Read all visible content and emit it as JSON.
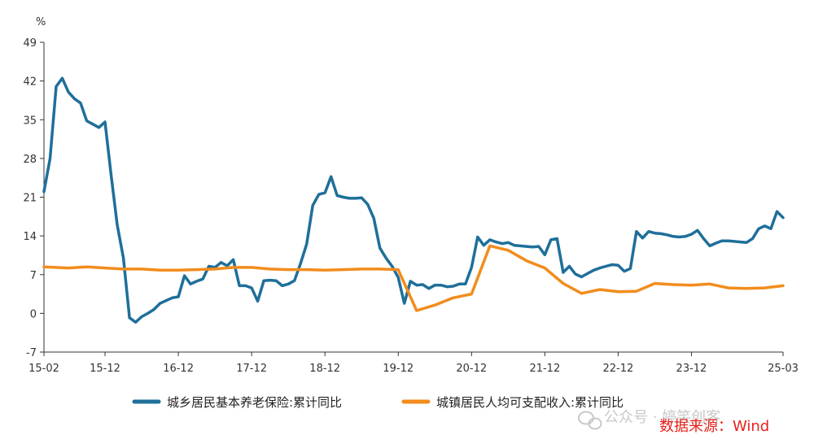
{
  "chart_data": {
    "type": "line",
    "ylabel": "%",
    "ylim": [
      -7,
      49
    ],
    "yticks": [
      -7,
      0,
      7,
      14,
      21,
      28,
      35,
      42,
      49
    ],
    "xlim": [
      "2015-02",
      "2025-03"
    ],
    "xticks": [
      "15-02",
      "15-12",
      "16-12",
      "17-12",
      "18-12",
      "19-12",
      "20-12",
      "21-12",
      "22-12",
      "23-12",
      "25-03"
    ],
    "legend_position": "bottom",
    "grid": false,
    "series": [
      {
        "name": "城乡居民基本养老保险:累计同比",
        "color": "#1f6f9a",
        "points": [
          [
            "2015-02",
            22.0
          ],
          [
            "2015-03",
            28.0
          ],
          [
            "2015-04",
            41.0
          ],
          [
            "2015-05",
            42.5
          ],
          [
            "2015-06",
            40.0
          ],
          [
            "2015-07",
            38.8
          ],
          [
            "2015-08",
            38.0
          ],
          [
            "2015-09",
            34.8
          ],
          [
            "2015-10",
            34.2
          ],
          [
            "2015-11",
            33.6
          ],
          [
            "2015-12",
            34.6
          ],
          [
            "2016-01",
            25.0
          ],
          [
            "2016-02",
            16.0
          ],
          [
            "2016-03",
            10.0
          ],
          [
            "2016-04",
            -0.8
          ],
          [
            "2016-05",
            -1.6
          ],
          [
            "2016-06",
            -0.6
          ],
          [
            "2016-07",
            0.0
          ],
          [
            "2016-08",
            0.7
          ],
          [
            "2016-09",
            1.8
          ],
          [
            "2016-10",
            2.3
          ],
          [
            "2016-11",
            2.8
          ],
          [
            "2016-12",
            3.0
          ],
          [
            "2017-01",
            6.8
          ],
          [
            "2017-02",
            5.3
          ],
          [
            "2017-03",
            5.8
          ],
          [
            "2017-04",
            6.2
          ],
          [
            "2017-05",
            8.5
          ],
          [
            "2017-06",
            8.3
          ],
          [
            "2017-07",
            9.2
          ],
          [
            "2017-08",
            8.6
          ],
          [
            "2017-09",
            9.7
          ],
          [
            "2017-10",
            5.0
          ],
          [
            "2017-11",
            5.0
          ],
          [
            "2017-12",
            4.6
          ],
          [
            "2018-01",
            2.2
          ],
          [
            "2018-02",
            5.9
          ],
          [
            "2018-03",
            6.0
          ],
          [
            "2018-04",
            5.9
          ],
          [
            "2018-05",
            5.0
          ],
          [
            "2018-06",
            5.3
          ],
          [
            "2018-07",
            5.9
          ],
          [
            "2018-08",
            9.0
          ],
          [
            "2018-09",
            12.5
          ],
          [
            "2018-10",
            19.5
          ],
          [
            "2018-11",
            21.5
          ],
          [
            "2018-12",
            21.8
          ],
          [
            "2019-01",
            24.7
          ],
          [
            "2019-02",
            21.3
          ],
          [
            "2019-03",
            21.0
          ],
          [
            "2019-04",
            20.8
          ],
          [
            "2019-05",
            20.8
          ],
          [
            "2019-06",
            20.9
          ],
          [
            "2019-07",
            19.7
          ],
          [
            "2019-08",
            17.2
          ],
          [
            "2019-09",
            11.8
          ],
          [
            "2019-10",
            10.0
          ],
          [
            "2019-11",
            8.5
          ],
          [
            "2019-12",
            6.5
          ],
          [
            "2020-01",
            1.8
          ],
          [
            "2020-02",
            5.8
          ],
          [
            "2020-03",
            5.1
          ],
          [
            "2020-04",
            5.2
          ],
          [
            "2020-05",
            4.5
          ],
          [
            "2020-06",
            5.1
          ],
          [
            "2020-07",
            5.1
          ],
          [
            "2020-08",
            4.8
          ],
          [
            "2020-09",
            4.9
          ],
          [
            "2020-10",
            5.3
          ],
          [
            "2020-11",
            5.3
          ],
          [
            "2020-12",
            8.3
          ],
          [
            "2021-01",
            13.8
          ],
          [
            "2021-02",
            12.3
          ],
          [
            "2021-03",
            13.3
          ],
          [
            "2021-04",
            12.9
          ],
          [
            "2021-05",
            12.6
          ],
          [
            "2021-06",
            12.8
          ],
          [
            "2021-07",
            12.3
          ],
          [
            "2021-08",
            12.2
          ],
          [
            "2021-09",
            12.1
          ],
          [
            "2021-10",
            12.0
          ],
          [
            "2021-11",
            12.1
          ],
          [
            "2021-12",
            10.6
          ],
          [
            "2022-01",
            13.3
          ],
          [
            "2022-02",
            13.5
          ],
          [
            "2022-03",
            7.4
          ],
          [
            "2022-04",
            8.5
          ],
          [
            "2022-05",
            7.1
          ],
          [
            "2022-06",
            6.6
          ],
          [
            "2022-07",
            7.2
          ],
          [
            "2022-08",
            7.8
          ],
          [
            "2022-09",
            8.2
          ],
          [
            "2022-10",
            8.5
          ],
          [
            "2022-11",
            8.8
          ],
          [
            "2022-12",
            8.7
          ],
          [
            "2023-01",
            7.6
          ],
          [
            "2023-02",
            8.1
          ],
          [
            "2023-03",
            14.8
          ],
          [
            "2023-04",
            13.6
          ],
          [
            "2023-05",
            14.8
          ],
          [
            "2023-06",
            14.5
          ],
          [
            "2023-07",
            14.4
          ],
          [
            "2023-08",
            14.2
          ],
          [
            "2023-09",
            13.9
          ],
          [
            "2023-10",
            13.8
          ],
          [
            "2023-11",
            13.9
          ],
          [
            "2023-12",
            14.3
          ],
          [
            "2024-01",
            15.0
          ],
          [
            "2024-02",
            13.5
          ],
          [
            "2024-03",
            12.2
          ],
          [
            "2024-04",
            12.7
          ],
          [
            "2024-05",
            13.1
          ],
          [
            "2024-06",
            13.1
          ],
          [
            "2024-07",
            13.0
          ],
          [
            "2024-08",
            12.9
          ],
          [
            "2024-09",
            12.8
          ],
          [
            "2024-10",
            13.5
          ],
          [
            "2024-11",
            15.3
          ],
          [
            "2024-12",
            15.8
          ],
          [
            "2025-01",
            15.3
          ],
          [
            "2025-02",
            18.4
          ],
          [
            "2025-03",
            17.3
          ]
        ]
      },
      {
        "name": "城镇居民人均可支配收入:累计同比",
        "color": "#f28c1c",
        "points": [
          [
            "2015-02",
            8.4
          ],
          [
            "2015-06",
            8.2
          ],
          [
            "2015-09",
            8.4
          ],
          [
            "2015-12",
            8.2
          ],
          [
            "2016-03",
            8.0
          ],
          [
            "2016-06",
            8.0
          ],
          [
            "2016-09",
            7.8
          ],
          [
            "2016-12",
            7.8
          ],
          [
            "2017-03",
            7.9
          ],
          [
            "2017-06",
            8.0
          ],
          [
            "2017-09",
            8.3
          ],
          [
            "2017-12",
            8.3
          ],
          [
            "2018-03",
            8.0
          ],
          [
            "2018-06",
            7.9
          ],
          [
            "2018-09",
            7.9
          ],
          [
            "2018-12",
            7.8
          ],
          [
            "2019-03",
            7.9
          ],
          [
            "2019-06",
            8.0
          ],
          [
            "2019-09",
            8.0
          ],
          [
            "2019-12",
            7.9
          ],
          [
            "2020-03",
            0.5
          ],
          [
            "2020-06",
            1.5
          ],
          [
            "2020-09",
            2.8
          ],
          [
            "2020-12",
            3.5
          ],
          [
            "2021-03",
            12.2
          ],
          [
            "2021-06",
            11.4
          ],
          [
            "2021-09",
            9.5
          ],
          [
            "2021-12",
            8.2
          ],
          [
            "2022-03",
            5.4
          ],
          [
            "2022-06",
            3.6
          ],
          [
            "2022-09",
            4.3
          ],
          [
            "2022-12",
            3.9
          ],
          [
            "2023-03",
            4.0
          ],
          [
            "2023-06",
            5.4
          ],
          [
            "2023-09",
            5.2
          ],
          [
            "2023-12",
            5.1
          ],
          [
            "2024-03",
            5.3
          ],
          [
            "2024-06",
            4.6
          ],
          [
            "2024-09",
            4.5
          ],
          [
            "2024-12",
            4.6
          ],
          [
            "2025-03",
            5.0
          ]
        ]
      }
    ]
  },
  "watermark": {
    "text": "公众号 · 婷笑创客",
    "source": "数据来源：Wind"
  }
}
